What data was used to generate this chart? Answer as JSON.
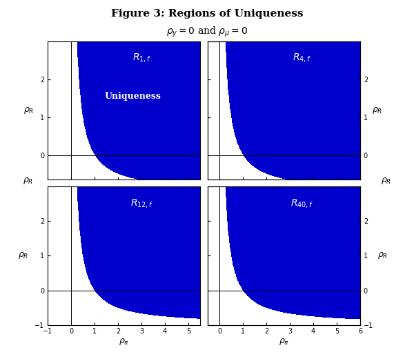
{
  "title": "Figure 3: Regions of Uniqueness",
  "subtitle": "$\\rho_y = 0$ and $\\rho_\\mu = 0$",
  "blue_rgb": [
    0,
    0,
    204
  ],
  "panels": [
    {
      "label": "$R_{1,f}$",
      "row": 0,
      "col": 0,
      "pi_min": -1.0,
      "pi_max": 5.5,
      "R_min": -0.65,
      "R_max": 3.0,
      "xticks": [
        -1,
        0,
        1,
        2,
        3,
        4,
        5
      ],
      "yticks": [
        0,
        1,
        2
      ],
      "show_xlabels": false,
      "show_ylabels": true
    },
    {
      "label": "$R_{4,f}$",
      "row": 0,
      "col": 1,
      "pi_min": -0.5,
      "pi_max": 6.0,
      "R_min": -0.65,
      "R_max": 3.0,
      "xticks": [
        0,
        1,
        2,
        3,
        4,
        5,
        6
      ],
      "yticks": [
        0,
        1,
        2
      ],
      "show_xlabels": false,
      "show_ylabels": false
    },
    {
      "label": "$R_{12,f}$",
      "row": 1,
      "col": 0,
      "pi_min": -1.0,
      "pi_max": 5.5,
      "R_min": -1.0,
      "R_max": 3.0,
      "xticks": [
        -1,
        0,
        1,
        2,
        3,
        4,
        5
      ],
      "yticks": [
        -1,
        0,
        1,
        2
      ],
      "show_xlabels": true,
      "show_ylabels": true
    },
    {
      "label": "$R_{40,f}$",
      "row": 1,
      "col": 1,
      "pi_min": -0.5,
      "pi_max": 6.0,
      "R_min": -1.0,
      "R_max": 3.0,
      "xticks": [
        0,
        1,
        2,
        3,
        4,
        5,
        6
      ],
      "yticks": [
        -1,
        0,
        1,
        2
      ],
      "show_xlabels": true,
      "show_ylabels": false
    }
  ],
  "uniqueness_text": "Uniqueness",
  "rho_pi_label": "$\\rho_\\pi$",
  "rho_R_label": "$\\rho_R$",
  "N": 600,
  "title_fontsize": 11,
  "subtitle_fontsize": 10,
  "tick_fontsize": 7,
  "panel_label_fontsize": 10,
  "uniqueness_fontsize": 9,
  "axis_label_fontsize": 9
}
